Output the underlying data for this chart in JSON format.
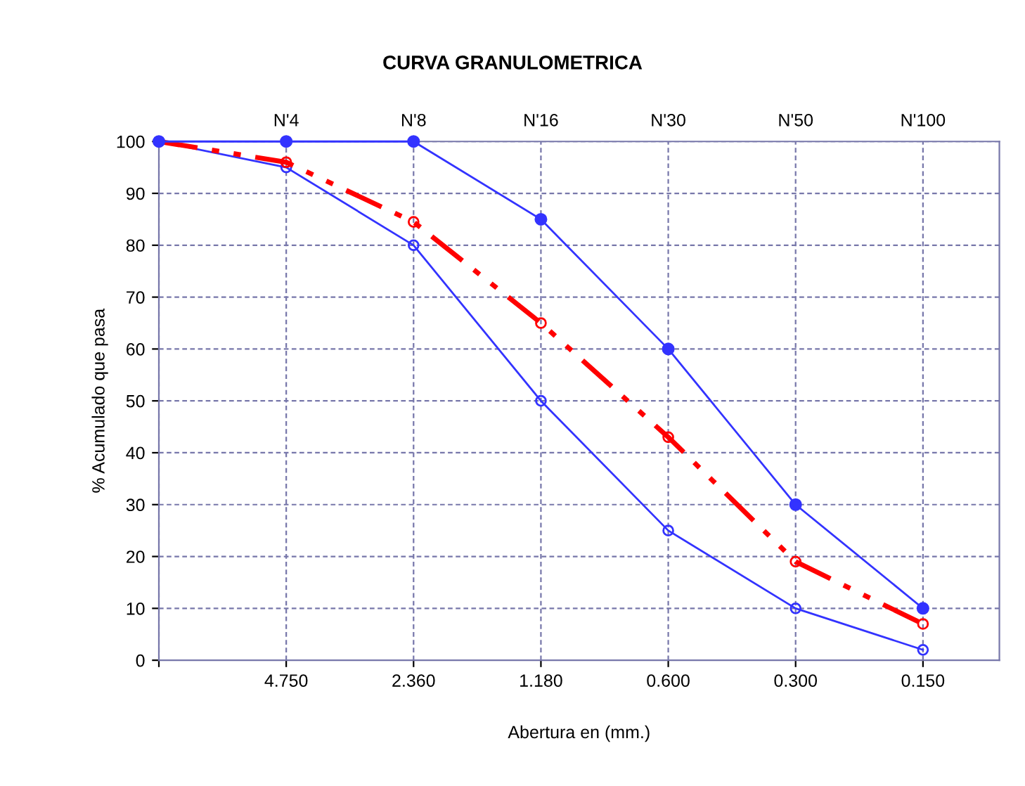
{
  "chart_data": {
    "type": "line",
    "title": "CURVA GRANULOMETRICA",
    "xlabel": "Abertura en (mm.)",
    "ylabel": "% Acumulado que pasa",
    "categories": [
      null,
      "4.750",
      "2.360",
      "1.180",
      "0.600",
      "0.300",
      "0.150"
    ],
    "series": [
      {
        "color": "#3333ff",
        "values": [
          100,
          100,
          100,
          85,
          60,
          30,
          10
        ],
        "marker": "circle",
        "line_style": "solid"
      },
      {
        "color": "#3333ff",
        "values": [
          100,
          95,
          80,
          50,
          25,
          10,
          2
        ],
        "marker": "circle",
        "line_style": "solid"
      },
      {
        "color": "#ff0000",
        "values": [
          100,
          96,
          84.5,
          65,
          43,
          19,
          7
        ],
        "marker": "circle",
        "line_style": "dashdotdot"
      }
    ],
    "annotations": [
      "N'4",
      "N'8",
      "N'16",
      "N'30",
      "N'50",
      "N'100"
    ],
    "ylim": [
      0,
      100
    ],
    "yticks": [
      0,
      10,
      20,
      30,
      40,
      50,
      60,
      70,
      80,
      90,
      100
    ],
    "grid": true,
    "legend": false
  }
}
